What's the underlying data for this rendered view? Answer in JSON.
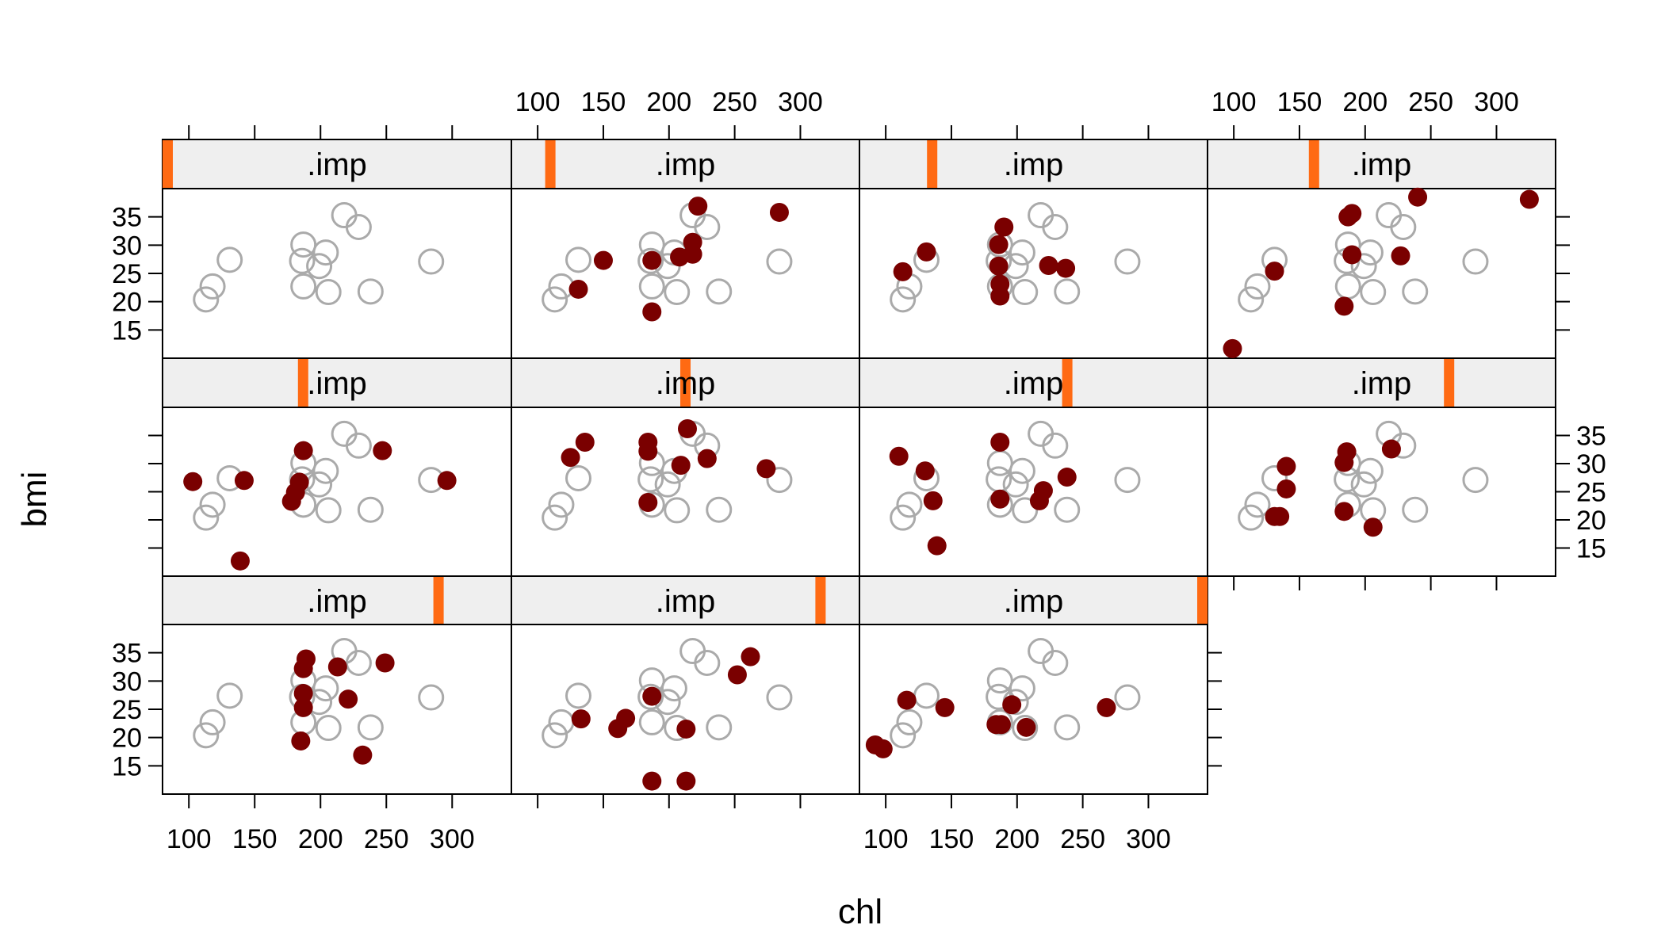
{
  "chart_data": {
    "type": "scatter",
    "layout": "lattice 4 x 3 panels, 11 panels",
    "xlabel": "chl",
    "ylabel": "bmi",
    "strip_label": ".imp",
    "xlim": [
      80,
      345
    ],
    "ylim": [
      10,
      40
    ],
    "x_ticks": [
      100,
      150,
      200,
      250,
      300
    ],
    "y_ticks": [
      15,
      20,
      25,
      30,
      35
    ],
    "observed_style": {
      "marker": "open-circle",
      "color": "#aaaaaa"
    },
    "imputed_style": {
      "marker": "filled-circle",
      "color": "#7a0000"
    },
    "strip_colors": {
      "background": "#efefef",
      "indicator": "#ff6a13"
    },
    "observed": [
      {
        "x": 113,
        "y": 20.4
      },
      {
        "x": 118,
        "y": 22.7
      },
      {
        "x": 131,
        "y": 27.4
      },
      {
        "x": 187,
        "y": 22.7
      },
      {
        "x": 186,
        "y": 27.2
      },
      {
        "x": 187,
        "y": 30.1
      },
      {
        "x": 199,
        "y": 26.3
      },
      {
        "x": 204,
        "y": 28.7
      },
      {
        "x": 206,
        "y": 21.7
      },
      {
        "x": 218,
        "y": 35.3
      },
      {
        "x": 229,
        "y": 33.2
      },
      {
        "x": 238,
        "y": 21.8
      },
      {
        "x": 284,
        "y": 27.1
      }
    ],
    "panels": [
      {
        "imputed": []
      },
      {
        "imputed": [
          {
            "x": 131,
            "y": 22.2
          },
          {
            "x": 150,
            "y": 27.3
          },
          {
            "x": 187,
            "y": 18.2
          },
          {
            "x": 187,
            "y": 27.3
          },
          {
            "x": 208,
            "y": 27.9
          },
          {
            "x": 218,
            "y": 30.5
          },
          {
            "x": 218,
            "y": 28.4
          },
          {
            "x": 222,
            "y": 36.9
          },
          {
            "x": 284,
            "y": 35.8
          }
        ]
      },
      {
        "imputed": [
          {
            "x": 113,
            "y": 25.3
          },
          {
            "x": 131,
            "y": 28.8
          },
          {
            "x": 186,
            "y": 30.1
          },
          {
            "x": 186,
            "y": 26.3
          },
          {
            "x": 187,
            "y": 23.1
          },
          {
            "x": 187,
            "y": 21
          },
          {
            "x": 190,
            "y": 33.2
          },
          {
            "x": 224,
            "y": 26.4
          },
          {
            "x": 237,
            "y": 25.9
          }
        ]
      },
      {
        "imputed": [
          {
            "x": 99,
            "y": 11.7
          },
          {
            "x": 131,
            "y": 25.4
          },
          {
            "x": 184,
            "y": 19.2
          },
          {
            "x": 187,
            "y": 35
          },
          {
            "x": 190,
            "y": 35.6
          },
          {
            "x": 190,
            "y": 28.3
          },
          {
            "x": 227,
            "y": 28.1
          },
          {
            "x": 240,
            "y": 38.5
          },
          {
            "x": 325,
            "y": 38.1
          }
        ]
      },
      {
        "imputed": [
          {
            "x": 103,
            "y": 26.8
          },
          {
            "x": 142,
            "y": 27
          },
          {
            "x": 139,
            "y": 12.7
          },
          {
            "x": 178,
            "y": 23.3
          },
          {
            "x": 181,
            "y": 24.9
          },
          {
            "x": 184,
            "y": 26.7
          },
          {
            "x": 187,
            "y": 32.3
          },
          {
            "x": 247,
            "y": 32.3
          },
          {
            "x": 296,
            "y": 27
          }
        ]
      },
      {
        "imputed": [
          {
            "x": 125,
            "y": 31.1
          },
          {
            "x": 136,
            "y": 33.8
          },
          {
            "x": 184,
            "y": 23.1
          },
          {
            "x": 184,
            "y": 33.8
          },
          {
            "x": 184,
            "y": 32.2
          },
          {
            "x": 209,
            "y": 29.7
          },
          {
            "x": 214,
            "y": 36.2
          },
          {
            "x": 229,
            "y": 30.9
          },
          {
            "x": 274,
            "y": 29.1
          }
        ]
      },
      {
        "imputed": [
          {
            "x": 110,
            "y": 31.3
          },
          {
            "x": 130,
            "y": 28.7
          },
          {
            "x": 136,
            "y": 23.4
          },
          {
            "x": 139,
            "y": 15.4
          },
          {
            "x": 187,
            "y": 23.7
          },
          {
            "x": 187,
            "y": 33.8
          },
          {
            "x": 217,
            "y": 23.4
          },
          {
            "x": 220,
            "y": 25.2
          },
          {
            "x": 238,
            "y": 27.6
          }
        ]
      },
      {
        "imputed": [
          {
            "x": 131,
            "y": 20.6
          },
          {
            "x": 135,
            "y": 20.6
          },
          {
            "x": 140,
            "y": 25.5
          },
          {
            "x": 140,
            "y": 29.5
          },
          {
            "x": 184,
            "y": 21.5
          },
          {
            "x": 184,
            "y": 30.2
          },
          {
            "x": 186,
            "y": 32.1
          },
          {
            "x": 206,
            "y": 18.7
          },
          {
            "x": 220,
            "y": 32.6
          }
        ]
      },
      {
        "imputed": [
          {
            "x": 185,
            "y": 19.4
          },
          {
            "x": 187,
            "y": 25.3
          },
          {
            "x": 187,
            "y": 27.8
          },
          {
            "x": 187,
            "y": 32.2
          },
          {
            "x": 189,
            "y": 33.9
          },
          {
            "x": 213,
            "y": 32.5
          },
          {
            "x": 221,
            "y": 26.8
          },
          {
            "x": 232,
            "y": 16.9
          },
          {
            "x": 249,
            "y": 33.2
          }
        ]
      },
      {
        "imputed": [
          {
            "x": 133,
            "y": 23.3
          },
          {
            "x": 161,
            "y": 21.6
          },
          {
            "x": 167,
            "y": 23.4
          },
          {
            "x": 187,
            "y": 12.3
          },
          {
            "x": 187,
            "y": 27.3
          },
          {
            "x": 213,
            "y": 12.3
          },
          {
            "x": 213,
            "y": 21.5
          },
          {
            "x": 252,
            "y": 31.1
          },
          {
            "x": 262,
            "y": 34.3
          }
        ]
      },
      {
        "imputed": [
          {
            "x": 92,
            "y": 18.7
          },
          {
            "x": 98,
            "y": 18
          },
          {
            "x": 116,
            "y": 26.6
          },
          {
            "x": 145,
            "y": 25.3
          },
          {
            "x": 184,
            "y": 22.3
          },
          {
            "x": 188,
            "y": 22.3
          },
          {
            "x": 196,
            "y": 25.8
          },
          {
            "x": 207,
            "y": 21.8
          },
          {
            "x": 268,
            "y": 25.3
          }
        ]
      }
    ]
  }
}
